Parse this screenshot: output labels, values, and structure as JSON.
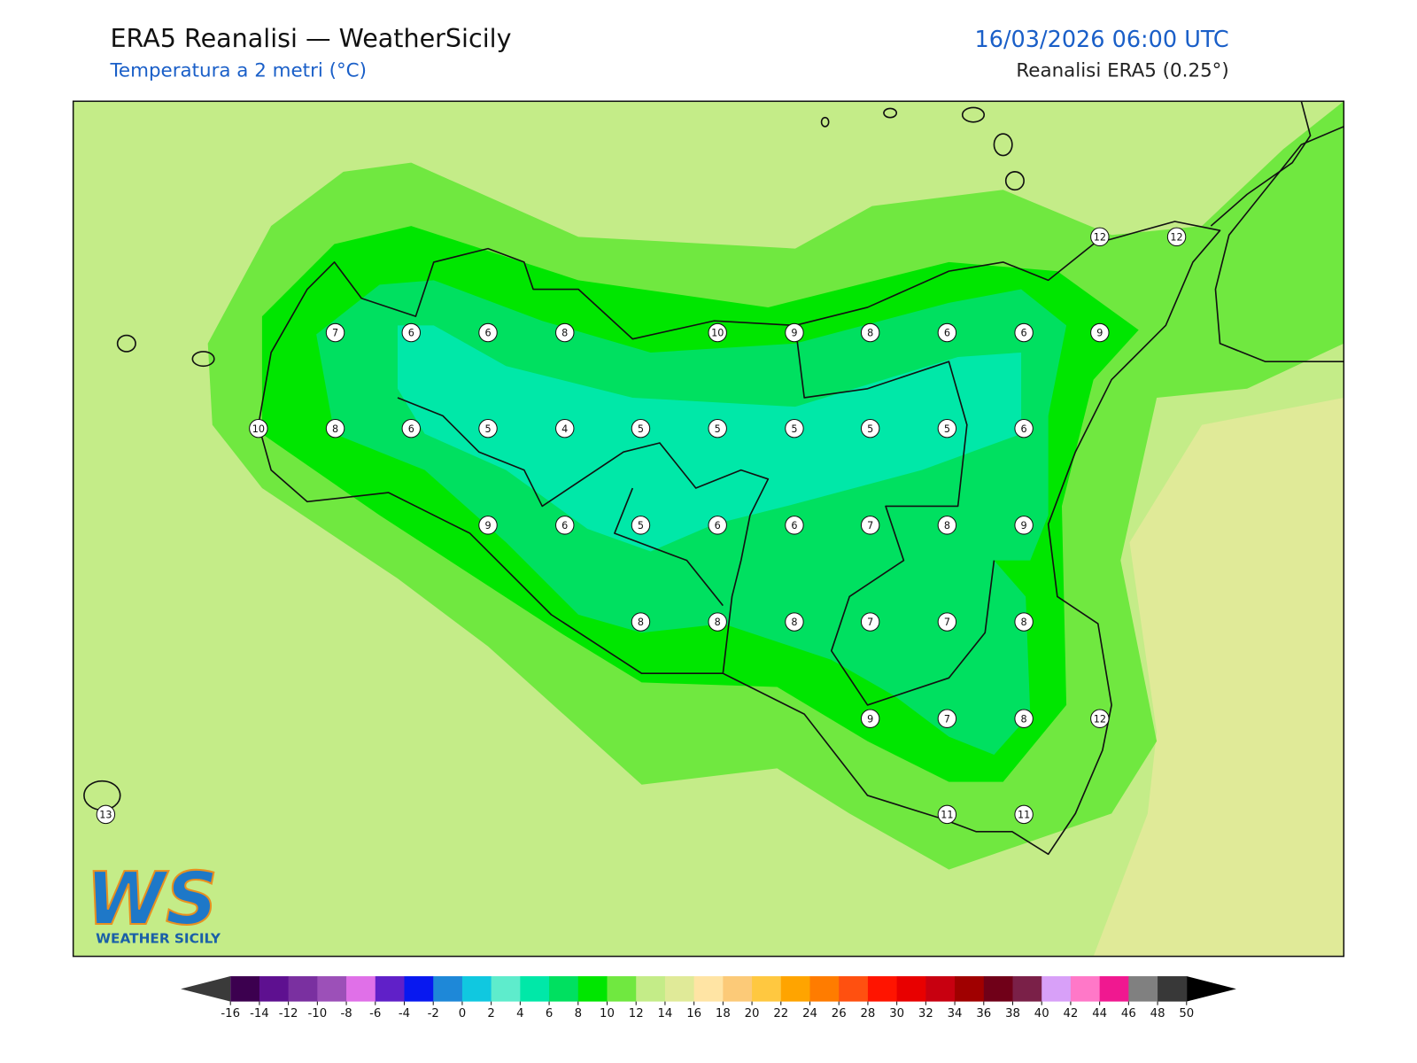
{
  "header": {
    "title": "ERA5 Reanalisi — WeatherSicily",
    "subtitle": "Temperatura a 2 metri (°C)",
    "datetime": "16/03/2026 06:00 UTC",
    "source": "Reanalisi ERA5 (0.25°)"
  },
  "stations": [
    7,
    6,
    6,
    8,
    10,
    9,
    8,
    6,
    6,
    9,
    12,
    12,
    10,
    8,
    6,
    5,
    4,
    5,
    5,
    5,
    5,
    5,
    6,
    9,
    6,
    5,
    6,
    6,
    7,
    8,
    9,
    8,
    8,
    8,
    7,
    7,
    8,
    9,
    7,
    8,
    12,
    13,
    11,
    11
  ],
  "logo": {
    "mark": "WS",
    "name": "WEATHER SICILY"
  },
  "colorbar": {
    "ticks": [
      -16,
      -14,
      -12,
      -10,
      -8,
      -6,
      -4,
      -2,
      0,
      2,
      4,
      6,
      8,
      10,
      12,
      14,
      16,
      18,
      20,
      22,
      24,
      26,
      28,
      30,
      32,
      34,
      36,
      38,
      40,
      42,
      44,
      46,
      48,
      50
    ],
    "colors": [
      "#3c004f",
      "#5e1090",
      "#7a30a0",
      "#9c50b8",
      "#e070e8",
      "#6020c8",
      "#0818f0",
      "#1e88d8",
      "#10c8e0",
      "#5eeccc",
      "#00e8a8",
      "#00e060",
      "#00e600",
      "#70e840",
      "#c4ec88",
      "#e0ea98",
      "#ffe4a4",
      "#fcca78",
      "#ffc840",
      "#ffa400",
      "#ff7c00",
      "#ff5010",
      "#ff1400",
      "#e80000",
      "#c80010",
      "#a00000",
      "#700018",
      "#7a2048",
      "#d8a0f8",
      "#ff78c8",
      "#f01890",
      "#808080",
      "#383838"
    ],
    "under_color": "#3a3a3a",
    "over_color": "#000000"
  }
}
